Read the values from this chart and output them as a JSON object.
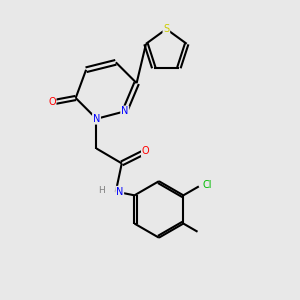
{
  "bg_color": "#e8e8e8",
  "bond_color": "#000000",
  "atom_colors": {
    "N": "#0000ff",
    "O": "#ff0000",
    "S": "#cccc00",
    "Cl": "#00bb00",
    "C": "#000000",
    "H": "#808080"
  },
  "figsize": [
    3.0,
    3.0
  ],
  "dpi": 100,
  "lw": 1.5,
  "fs": 7.0
}
